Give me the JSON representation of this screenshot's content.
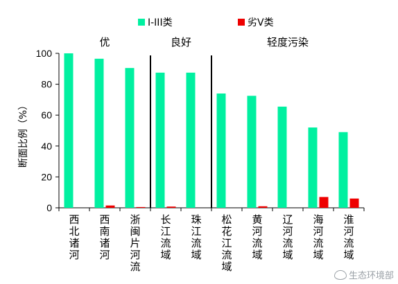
{
  "chart_data": {
    "type": "bar",
    "ylabel": "断面比例（%）",
    "ylim": [
      0,
      100
    ],
    "yticks": [
      0,
      20,
      40,
      60,
      80,
      100
    ],
    "categories": [
      "西北诸河",
      "西南诸河",
      "浙闽片河流",
      "长江流域",
      "珠江流域",
      "松花江流域",
      "黄河流域",
      "辽河流域",
      "海河流域",
      "淮河流域"
    ],
    "series": [
      {
        "name": "I-III类",
        "color": "#00f0a0",
        "values": [
          100,
          96.5,
          90.5,
          87.5,
          87.5,
          74,
          72.5,
          65.5,
          52,
          49
        ]
      },
      {
        "name": "劣V类",
        "color": "#ee0000",
        "values": [
          0,
          1.5,
          0.5,
          0.8,
          0,
          0,
          1.0,
          0,
          7,
          6
        ]
      }
    ],
    "groups": [
      {
        "label": "优",
        "from": 0,
        "to": 2
      },
      {
        "label": "良好",
        "from": 3,
        "to": 4
      },
      {
        "label": "轻度污染",
        "from": 5,
        "to": 9
      }
    ],
    "legend_position": "top"
  },
  "watermark": {
    "text": "生态环境部"
  }
}
